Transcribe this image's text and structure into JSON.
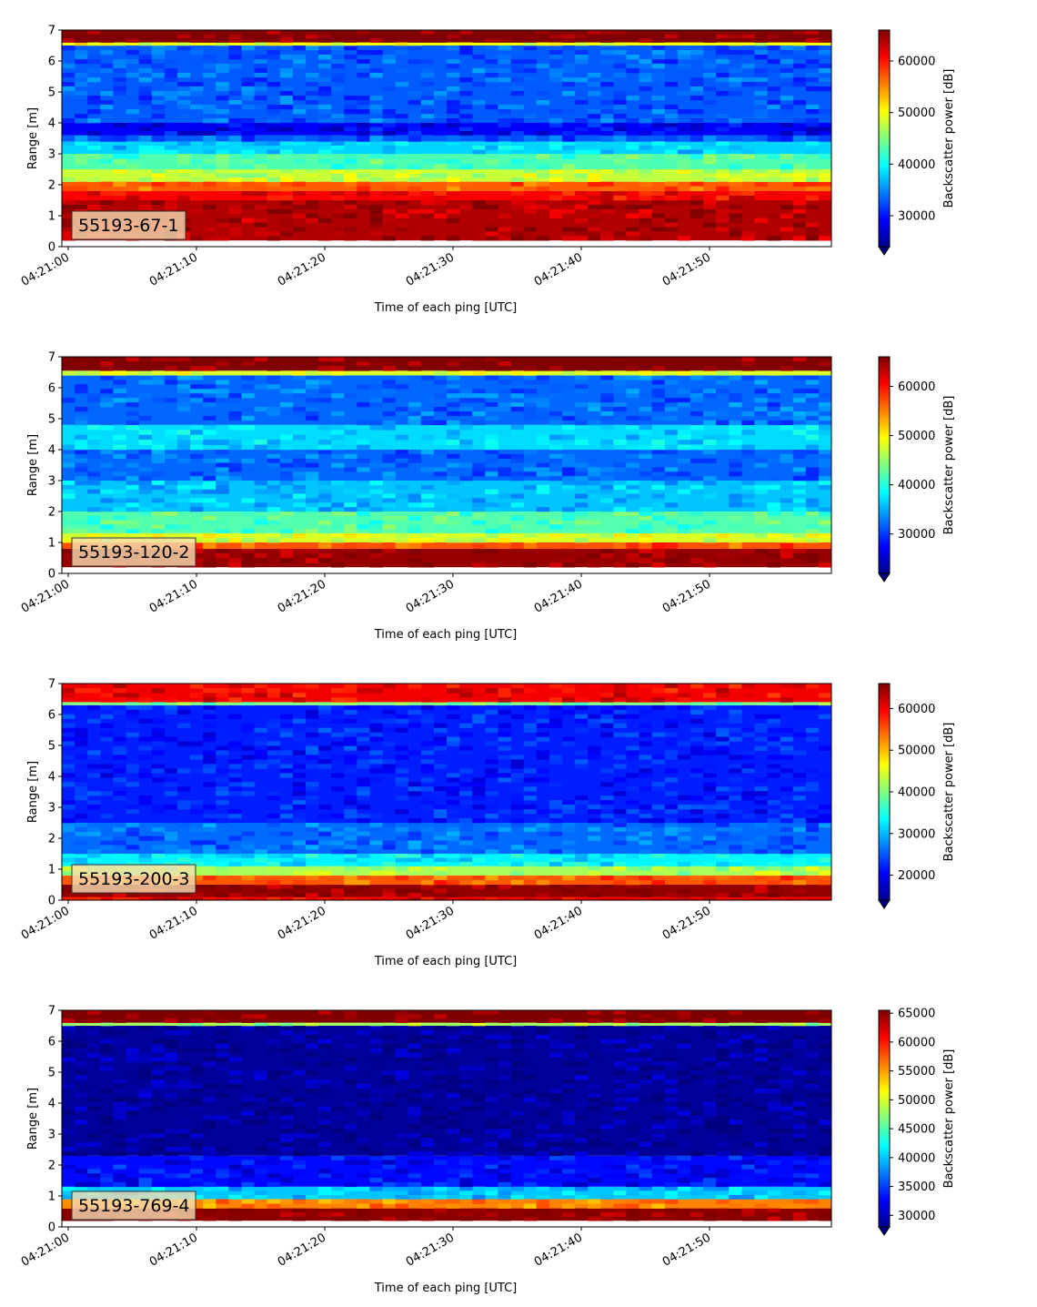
{
  "chart_data": [
    {
      "type": "heatmap",
      "panel_label": "55193-67-1",
      "xlabel": "Time of each ping [UTC]",
      "ylabel": "Range [m]",
      "colorbar_label": "Backscatter power [dB]",
      "x_ticks": [
        "04:21:00",
        "04:21:10",
        "04:21:20",
        "04:21:30",
        "04:21:40",
        "04:21:50"
      ],
      "y_ticks": [
        "0",
        "1",
        "2",
        "3",
        "4",
        "5",
        "6",
        "7"
      ],
      "ylim": [
        0,
        7
      ],
      "colorbar_ticks": [
        "30000",
        "40000",
        "50000",
        "60000"
      ],
      "color_range": [
        24000,
        66000
      ],
      "colormap": "jet",
      "bands": [
        {
          "y": [
            0.0,
            0.2
          ],
          "value": null
        },
        {
          "y": [
            0.2,
            1.5
          ],
          "value": 64000
        },
        {
          "y": [
            1.5,
            1.8
          ],
          "value": 61000
        },
        {
          "y": [
            1.8,
            2.1
          ],
          "value": 57000
        },
        {
          "y": [
            2.1,
            2.5
          ],
          "value": 48000
        },
        {
          "y": [
            2.5,
            3.0
          ],
          "value": 43000
        },
        {
          "y": [
            3.0,
            3.4
          ],
          "value": 38000
        },
        {
          "y": [
            3.4,
            3.6
          ],
          "value": 33000
        },
        {
          "y": [
            3.6,
            4.0
          ],
          "value": 29000
        },
        {
          "y": [
            4.0,
            6.5
          ],
          "value": 33000
        },
        {
          "y": [
            6.5,
            6.6
          ],
          "value": 50000
        },
        {
          "y": [
            6.6,
            7.0
          ],
          "value": 66000
        }
      ]
    },
    {
      "type": "heatmap",
      "panel_label": "55193-120-2",
      "xlabel": "Time of each ping [UTC]",
      "ylabel": "Range [m]",
      "colorbar_label": "Backscatter power [dB]",
      "x_ticks": [
        "04:21:00",
        "04:21:10",
        "04:21:20",
        "04:21:30",
        "04:21:40",
        "04:21:50"
      ],
      "y_ticks": [
        "0",
        "1",
        "2",
        "3",
        "4",
        "5",
        "6",
        "7"
      ],
      "ylim": [
        0,
        7
      ],
      "colorbar_ticks": [
        "30000",
        "40000",
        "50000",
        "60000"
      ],
      "color_range": [
        22000,
        66000
      ],
      "colormap": "jet",
      "bands": [
        {
          "y": [
            0.0,
            0.2
          ],
          "value": null
        },
        {
          "y": [
            0.2,
            0.8
          ],
          "value": 65000
        },
        {
          "y": [
            0.8,
            1.0
          ],
          "value": 57000
        },
        {
          "y": [
            1.0,
            1.3
          ],
          "value": 48000
        },
        {
          "y": [
            1.3,
            2.0
          ],
          "value": 42000
        },
        {
          "y": [
            2.0,
            3.0
          ],
          "value": 36000
        },
        {
          "y": [
            3.0,
            4.0
          ],
          "value": 32000
        },
        {
          "y": [
            4.0,
            4.8
          ],
          "value": 37000
        },
        {
          "y": [
            4.8,
            6.4
          ],
          "value": 32000
        },
        {
          "y": [
            6.4,
            6.55
          ],
          "value": 48000
        },
        {
          "y": [
            6.55,
            7.0
          ],
          "value": 66000
        }
      ]
    },
    {
      "type": "heatmap",
      "panel_label": "55193-200-3",
      "xlabel": "Time of each ping [UTC]",
      "ylabel": "Range [m]",
      "colorbar_label": "Backscatter power [dB]",
      "x_ticks": [
        "04:21:00",
        "04:21:10",
        "04:21:20",
        "04:21:30",
        "04:21:40",
        "04:21:50"
      ],
      "y_ticks": [
        "0",
        "1",
        "2",
        "3",
        "4",
        "5",
        "6",
        "7"
      ],
      "ylim": [
        0,
        7
      ],
      "colorbar_ticks": [
        "20000",
        "30000",
        "40000",
        "50000",
        "60000"
      ],
      "color_range": [
        14000,
        66000
      ],
      "colormap": "jet",
      "bands": [
        {
          "y": [
            0.0,
            0.1
          ],
          "value": 60000
        },
        {
          "y": [
            0.1,
            0.5
          ],
          "value": 65000
        },
        {
          "y": [
            0.5,
            0.8
          ],
          "value": 55000
        },
        {
          "y": [
            0.8,
            1.1
          ],
          "value": 42000
        },
        {
          "y": [
            1.1,
            1.5
          ],
          "value": 33000
        },
        {
          "y": [
            1.5,
            2.5
          ],
          "value": 26000
        },
        {
          "y": [
            2.5,
            6.3
          ],
          "value": 22000
        },
        {
          "y": [
            6.3,
            6.4
          ],
          "value": 40000
        },
        {
          "y": [
            6.4,
            7.0
          ],
          "value": 60000
        }
      ]
    },
    {
      "type": "heatmap",
      "panel_label": "55193-769-4",
      "xlabel": "Time of each ping [UTC]",
      "ylabel": "Range [m]",
      "colorbar_label": "Backscatter power [dB]",
      "x_ticks": [
        "04:21:00",
        "04:21:10",
        "04:21:20",
        "04:21:30",
        "04:21:40",
        "04:21:50"
      ],
      "y_ticks": [
        "0",
        "1",
        "2",
        "3",
        "4",
        "5",
        "6",
        "7"
      ],
      "ylim": [
        0,
        7
      ],
      "colorbar_ticks": [
        "30000",
        "35000",
        "40000",
        "45000",
        "50000",
        "55000",
        "60000",
        "65000"
      ],
      "color_range": [
        28000,
        65500
      ],
      "colormap": "jet",
      "bands": [
        {
          "y": [
            0.0,
            0.2
          ],
          "value": null
        },
        {
          "y": [
            0.2,
            0.6
          ],
          "value": 65000
        },
        {
          "y": [
            0.6,
            0.9
          ],
          "value": 56000
        },
        {
          "y": [
            0.9,
            1.3
          ],
          "value": 40000
        },
        {
          "y": [
            1.3,
            2.3
          ],
          "value": 33000
        },
        {
          "y": [
            2.3,
            6.5
          ],
          "value": 29000
        },
        {
          "y": [
            6.5,
            6.6
          ],
          "value": 48000
        },
        {
          "y": [
            6.6,
            7.0
          ],
          "value": 65500
        }
      ]
    }
  ]
}
